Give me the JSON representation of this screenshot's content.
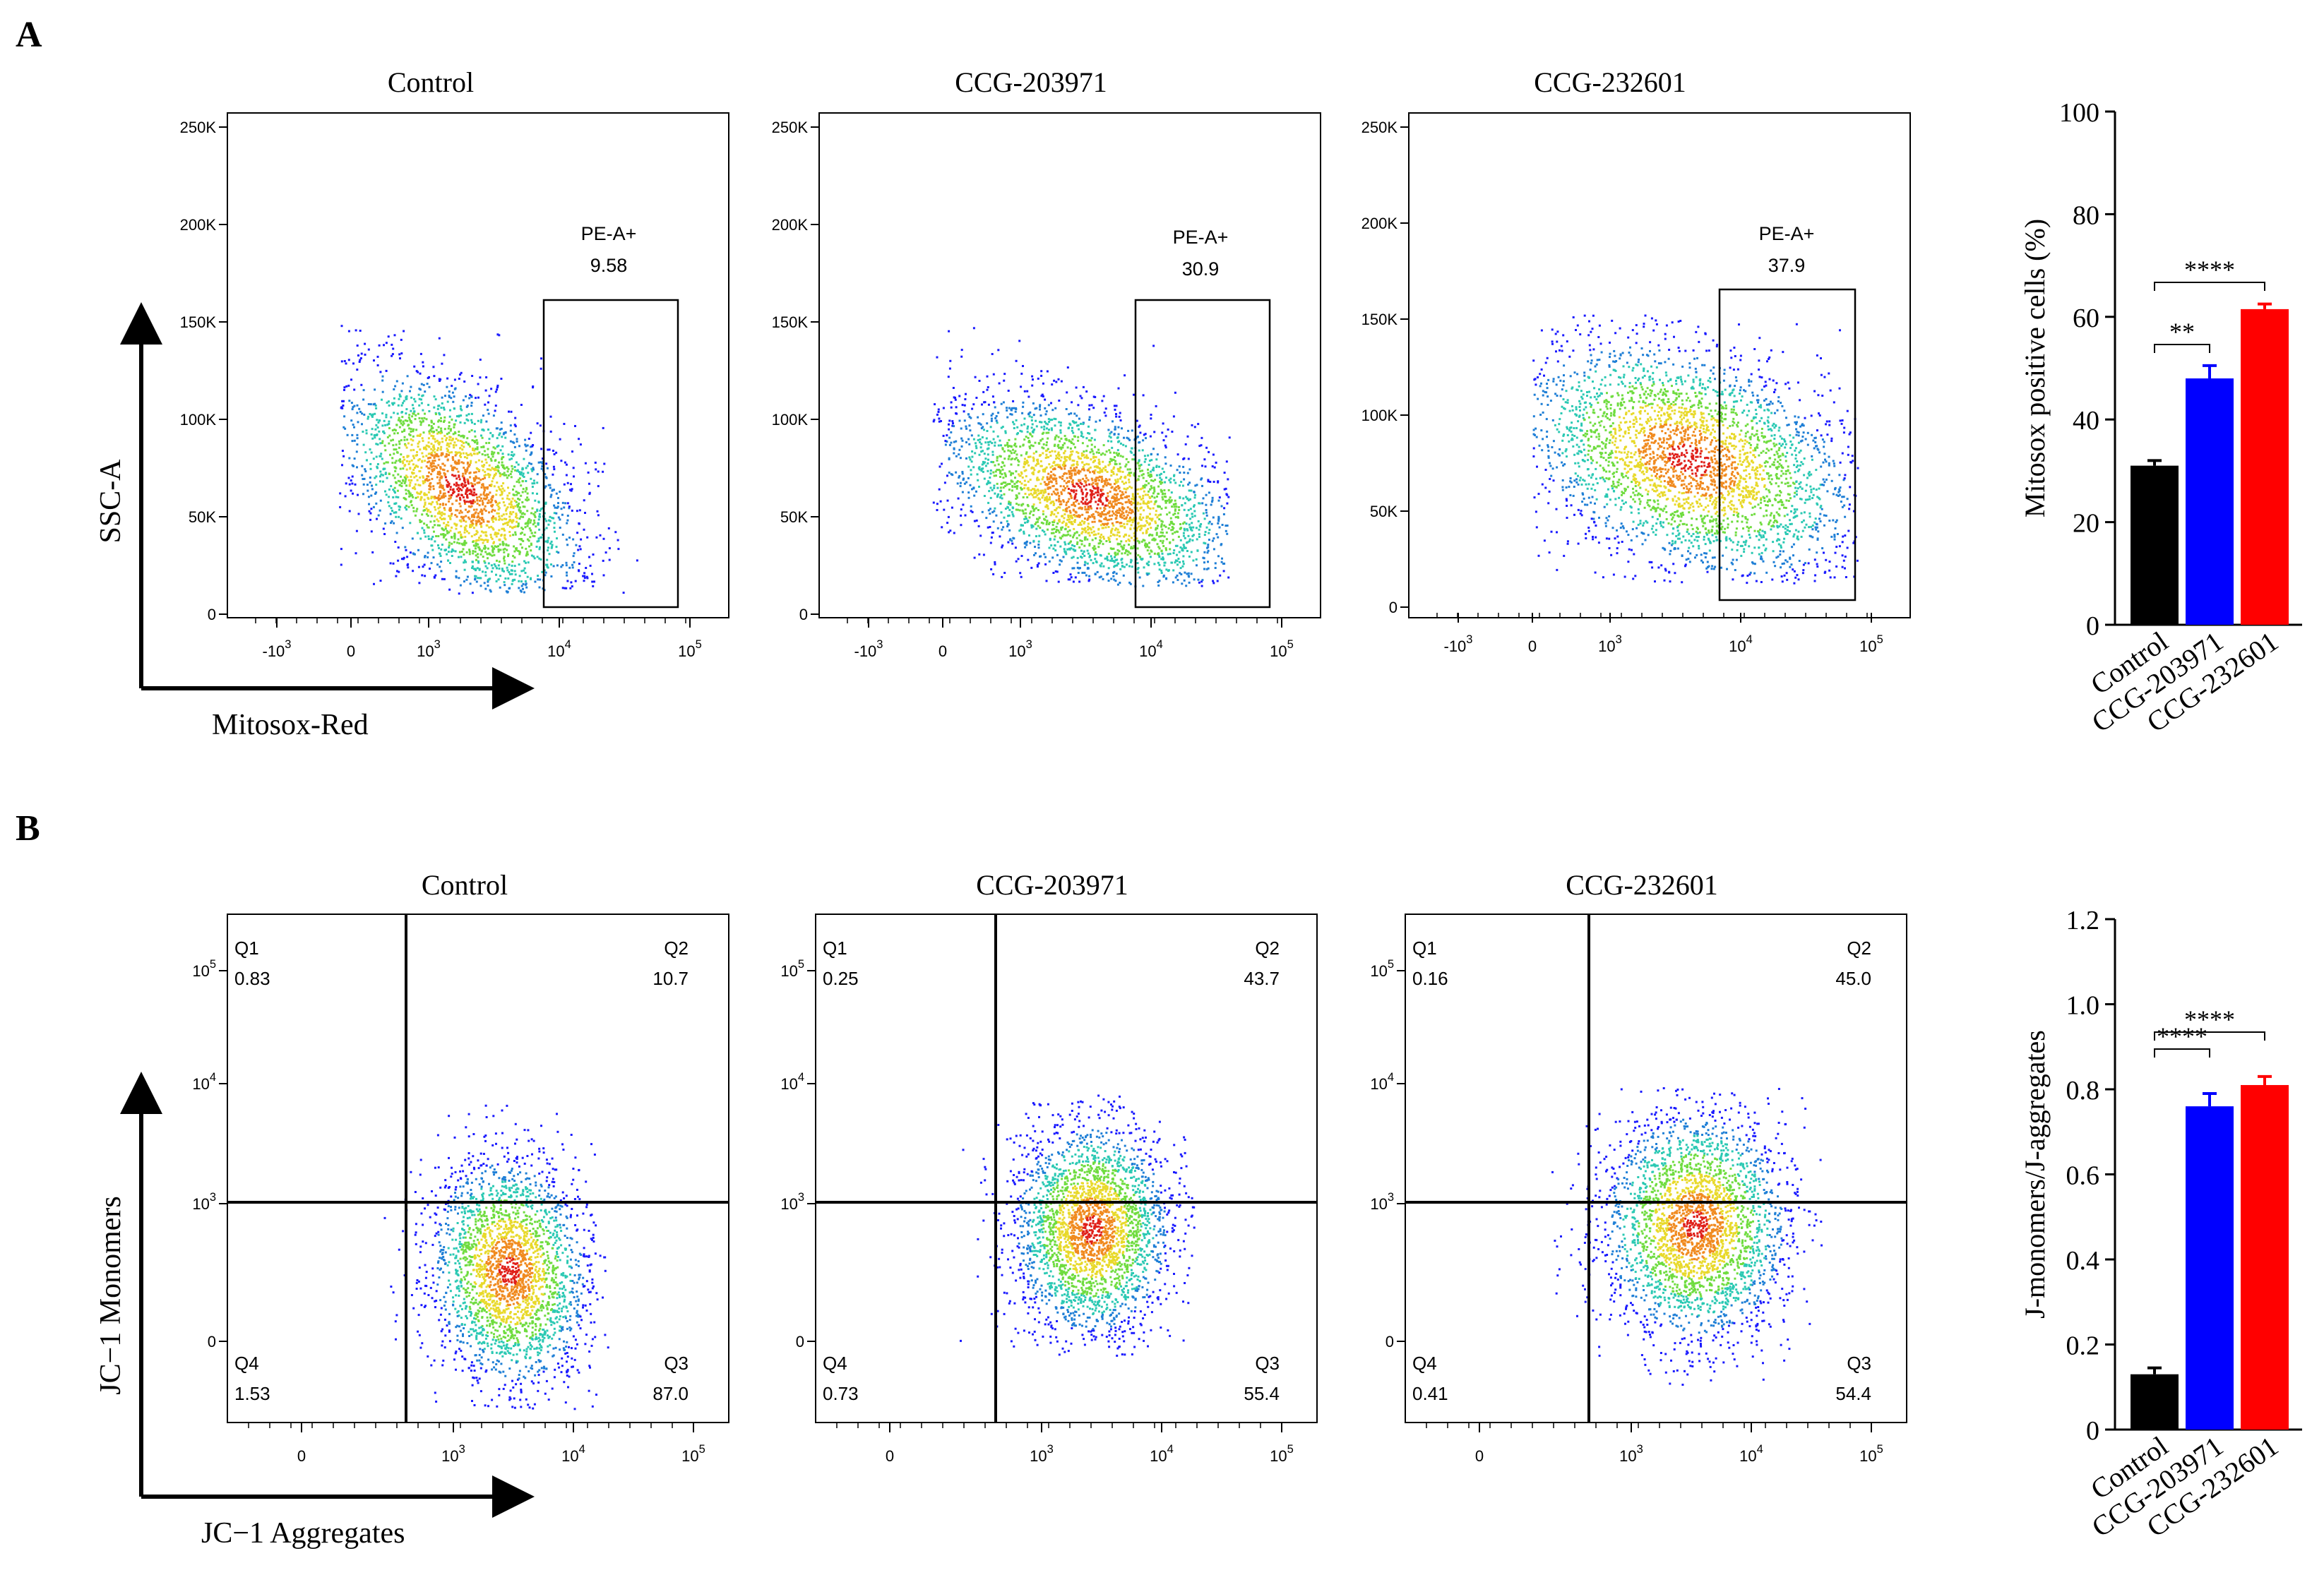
{
  "panels": {
    "A": {
      "label": "A",
      "x_axis_label": "Mitosox-Red",
      "y_axis_label": "SSC-A",
      "y_ticks": [
        "250K",
        "200K",
        "150K",
        "100K",
        "50K",
        "0"
      ],
      "x_ticks": [
        {
          "base": "-10",
          "exp": "3"
        },
        {
          "base": "0",
          "exp": ""
        },
        {
          "base": "10",
          "exp": "3"
        },
        {
          "base": "10",
          "exp": "4"
        },
        {
          "base": "10",
          "exp": "5"
        }
      ],
      "plots": [
        {
          "title": "Control",
          "gate_name": "PE-A+",
          "gate_value": "9.58"
        },
        {
          "title": "CCG-203971",
          "gate_name": "PE-A+",
          "gate_value": "30.9"
        },
        {
          "title": "CCG-232601",
          "gate_name": "PE-A+",
          "gate_value": "37.9"
        }
      ]
    },
    "B": {
      "label": "B",
      "x_axis_label": "JC−1 Aggregates",
      "y_axis_label": "JC−1 Monomers",
      "y_ticks": [
        {
          "base": "10",
          "exp": "5"
        },
        {
          "base": "10",
          "exp": "4"
        },
        {
          "base": "10",
          "exp": "3"
        },
        {
          "base": "0",
          "exp": ""
        }
      ],
      "x_ticks": [
        {
          "base": "0",
          "exp": ""
        },
        {
          "base": "10",
          "exp": "3"
        },
        {
          "base": "10",
          "exp": "4"
        },
        {
          "base": "10",
          "exp": "5"
        }
      ],
      "plots": [
        {
          "title": "Control",
          "q1": {
            "name": "Q1",
            "value": "0.83"
          },
          "q2": {
            "name": "Q2",
            "value": "10.7"
          },
          "q3": {
            "name": "Q3",
            "value": "87.0"
          },
          "q4": {
            "name": "Q4",
            "value": "1.53"
          }
        },
        {
          "title": "CCG-203971",
          "q1": {
            "name": "Q1",
            "value": "0.25"
          },
          "q2": {
            "name": "Q2",
            "value": "43.7"
          },
          "q3": {
            "name": "Q3",
            "value": "55.4"
          },
          "q4": {
            "name": "Q4",
            "value": "0.73"
          }
        },
        {
          "title": "CCG-232601",
          "q1": {
            "name": "Q1",
            "value": "0.16"
          },
          "q2": {
            "name": "Q2",
            "value": "45.0"
          },
          "q3": {
            "name": "Q3",
            "value": "54.4"
          },
          "q4": {
            "name": "Q4",
            "value": "0.41"
          }
        }
      ]
    }
  },
  "chart_data": [
    {
      "type": "bar",
      "ylabel": "Mitosox positive cells (%)",
      "categories": [
        "Control",
        "CCG-203971",
        "CCG-232601"
      ],
      "values": [
        31,
        48,
        61.5
      ],
      "errors": [
        1,
        2.5,
        1
      ],
      "colors": [
        "#000000",
        "#0000ff",
        "#ff0000"
      ],
      "ylim": [
        0,
        100
      ],
      "yticks": [
        0,
        20,
        40,
        60,
        80,
        100
      ],
      "ytick_labels": [
        "0",
        "20",
        "40",
        "60",
        "80",
        "100"
      ],
      "significance": [
        {
          "from": 0,
          "to": 1,
          "label": "**"
        },
        {
          "from": 0,
          "to": 2,
          "label": "****"
        }
      ]
    },
    {
      "type": "bar",
      "ylabel": "J-monomers/J-aggregates",
      "categories": [
        "Control",
        "CCG-203971",
        "CCG-232601"
      ],
      "values": [
        0.13,
        0.76,
        0.81
      ],
      "errors": [
        0.015,
        0.03,
        0.02
      ],
      "colors": [
        "#000000",
        "#0000ff",
        "#ff0000"
      ],
      "ylim": [
        0,
        1.2
      ],
      "yticks": [
        0,
        0.2,
        0.4,
        0.6,
        0.8,
        1.0,
        1.2
      ],
      "ytick_labels": [
        "0",
        "0.2",
        "0.4",
        "0.6",
        "0.8",
        "1.0",
        "1.2"
      ],
      "significance": [
        {
          "from": 0,
          "to": 1,
          "label": "****"
        },
        {
          "from": 0,
          "to": 2,
          "label": "****"
        }
      ]
    }
  ]
}
